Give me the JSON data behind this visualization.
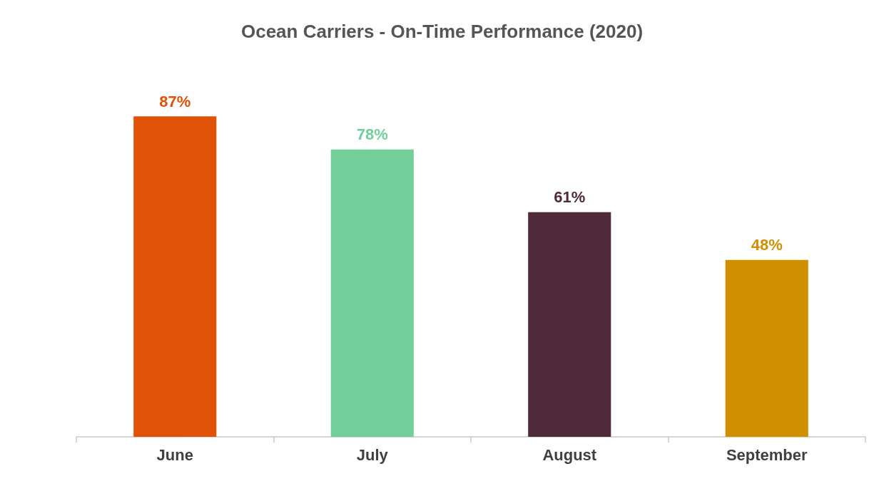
{
  "chart_data": {
    "type": "bar",
    "title": "Ocean Carriers - On-Time Performance (2020)",
    "categories": [
      "June",
      "July",
      "August",
      "September"
    ],
    "values": [
      87,
      78,
      61,
      48
    ],
    "value_labels": [
      "87%",
      "78%",
      "61%",
      "48%"
    ],
    "colors": [
      "#e05206",
      "#72cf9a",
      "#4f2a3a",
      "#d08f00"
    ]
  }
}
